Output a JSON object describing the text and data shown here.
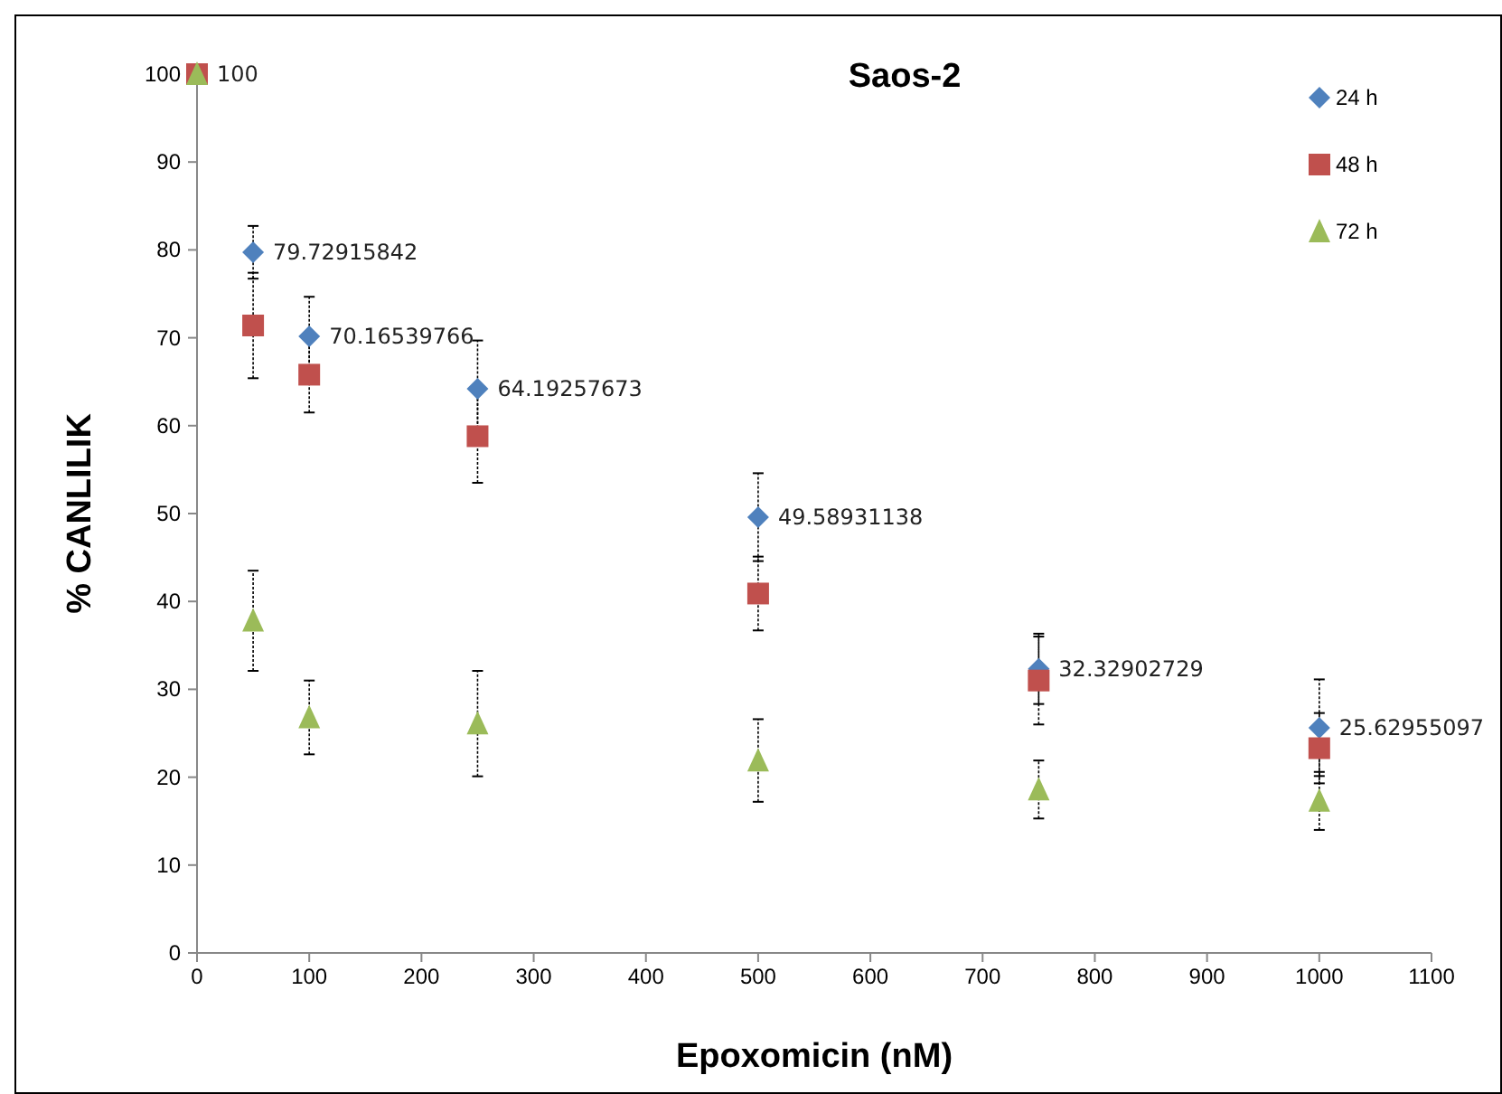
{
  "chart_data": {
    "type": "scatter",
    "title": "Saos-2",
    "xlabel": "Epoxomicin (nM)",
    "ylabel": "% CANLILIK",
    "x": [
      0,
      50,
      100,
      250,
      500,
      750,
      1000
    ],
    "xlim": [
      0,
      1100
    ],
    "xticks": [
      0,
      100,
      200,
      300,
      400,
      500,
      600,
      700,
      800,
      900,
      1000,
      1100
    ],
    "ylim": [
      0,
      100
    ],
    "yticks": [
      0,
      10,
      20,
      30,
      40,
      50,
      60,
      70,
      80,
      90,
      100
    ],
    "grid": false,
    "legend": "top right",
    "series": [
      {
        "name": "24 h",
        "color": "#4f81bd",
        "marker": "diamond",
        "values": [
          null,
          79.72915842,
          70.16539766,
          64.19257673,
          49.58931138,
          32.32902729,
          25.62955097
        ],
        "errors": [
          null,
          3,
          4.5,
          5.5,
          5,
          4,
          5.5
        ],
        "value_labels": [
          null,
          "79.72915842",
          "70.16539766",
          "64.19257673",
          "49.58931138",
          "32.32902729",
          "25.62955097"
        ]
      },
      {
        "name": "48 h",
        "color": "#c0504d",
        "marker": "square",
        "values": [
          100,
          71.4,
          65.8,
          58.8,
          40.9,
          31,
          23.3
        ],
        "errors": [
          null,
          6,
          4.3,
          5.3,
          4.2,
          5,
          4
        ]
      },
      {
        "name": "72 h",
        "color": "#9bbb59",
        "marker": "triangle",
        "values": [
          100,
          37.8,
          26.8,
          26.1,
          21.9,
          18.6,
          17.3
        ],
        "errors": [
          null,
          5.7,
          4.2,
          6,
          4.7,
          3.3,
          3.3
        ],
        "value_labels": [
          "100",
          null,
          null,
          null,
          null,
          null,
          null
        ]
      }
    ]
  }
}
